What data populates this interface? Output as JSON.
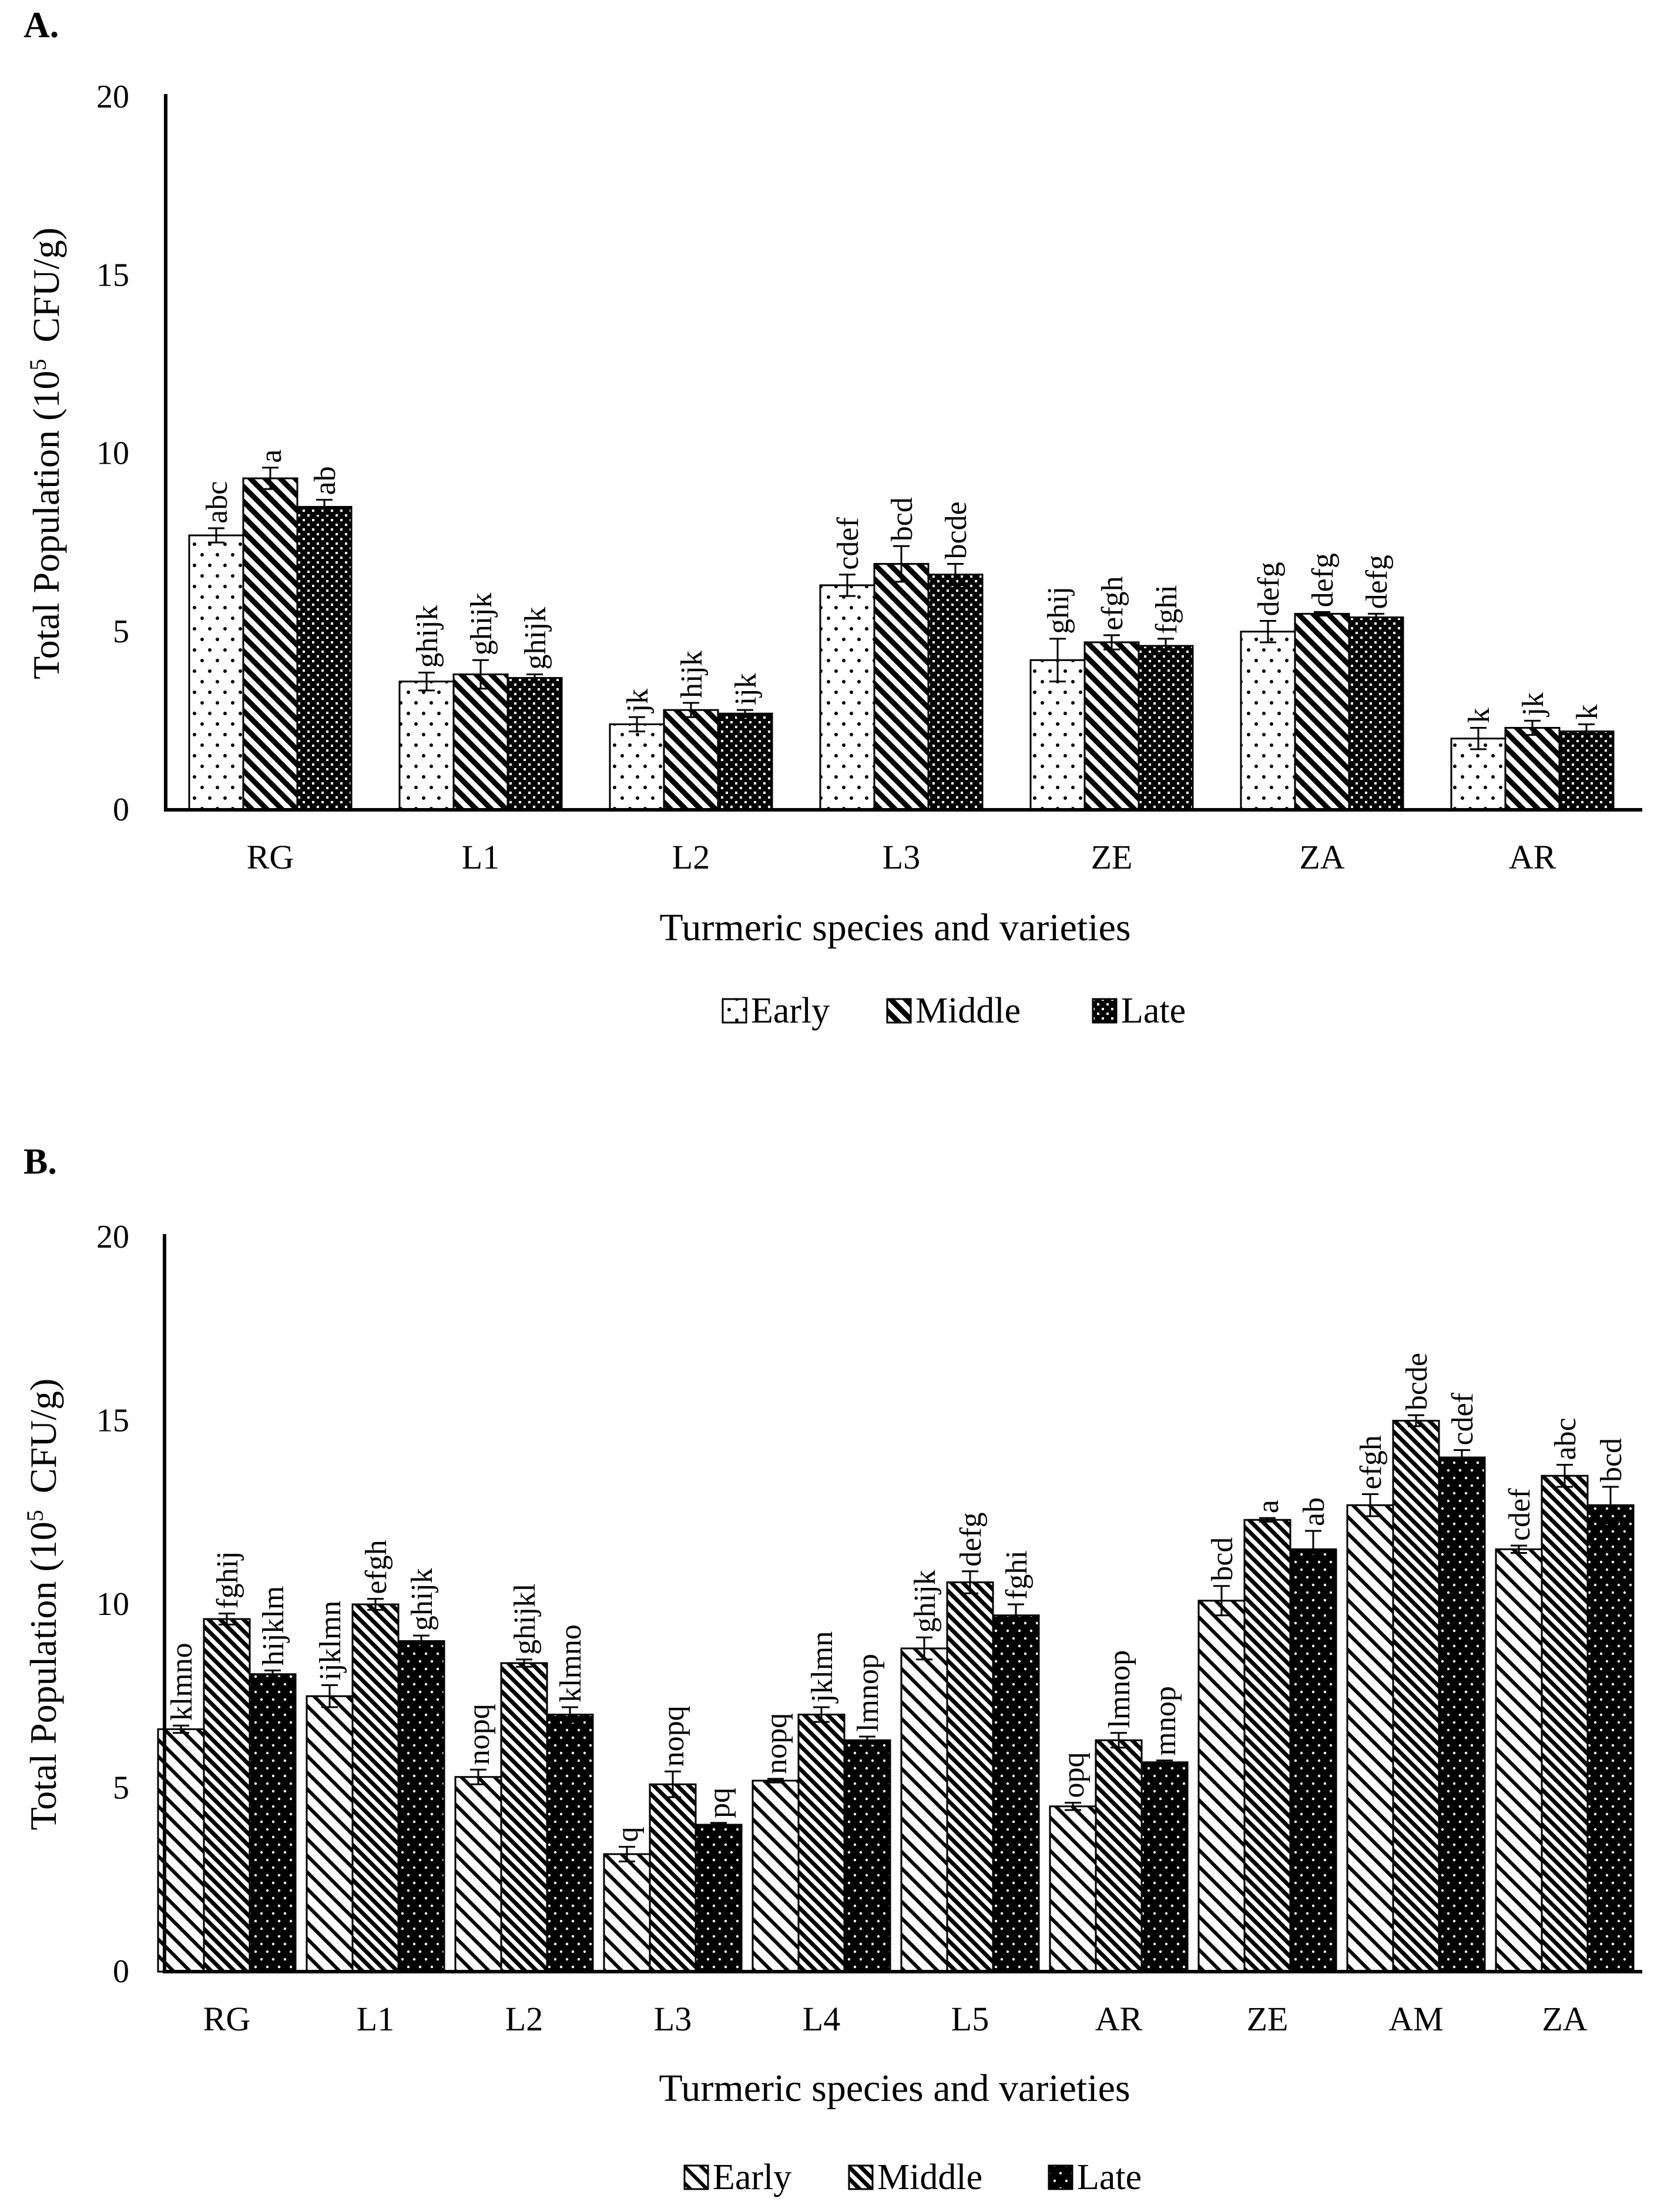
{
  "panels": [
    {
      "label": "A."
    },
    {
      "label": "B."
    }
  ],
  "colors": {
    "axis": "#000000",
    "bar_fill": "#ffffff",
    "late_fill": "#000000",
    "text": "#000000"
  },
  "chart_data": [
    {
      "type": "bar",
      "panel": "A.",
      "xlabel": "Turmeric species and varieties",
      "ylabel_prefix": "Total Population (10",
      "ylabel_sup": "5",
      "ylabel_suffix": "CFU/g)",
      "ylim": [
        0,
        20
      ],
      "yticks": [
        0,
        5,
        10,
        15,
        20
      ],
      "categories": [
        "RG",
        "L1",
        "L2",
        "L3",
        "ZE",
        "ZA",
        "AR"
      ],
      "legend_position": "bottom-center",
      "grid": false,
      "series": [
        {
          "name": "Early",
          "pattern": "dots",
          "values": [
            7.7,
            3.6,
            2.4,
            6.3,
            4.2,
            5.0,
            2.0
          ],
          "errors": [
            0.2,
            0.25,
            0.2,
            0.3,
            0.6,
            0.3,
            0.3
          ],
          "letters": [
            "abc",
            "ghijk",
            "jk",
            "cdef",
            "ghij",
            "defg",
            "k"
          ]
        },
        {
          "name": "Middle",
          "pattern": "diagonal",
          "values": [
            9.3,
            3.8,
            2.8,
            6.9,
            4.7,
            5.5,
            2.3
          ],
          "errors": [
            0.3,
            0.4,
            0.2,
            0.5,
            0.2,
            0.05,
            0.2
          ],
          "letters": [
            "a",
            "ghijk",
            "hijk",
            "bcd",
            "efgh",
            "defg",
            "jk"
          ]
        },
        {
          "name": "Late",
          "pattern": "checker",
          "values": [
            8.5,
            3.7,
            2.7,
            6.6,
            4.6,
            5.4,
            2.2
          ],
          "errors": [
            0.2,
            0.1,
            0.1,
            0.3,
            0.2,
            0.1,
            0.2
          ],
          "letters": [
            "ab",
            "ghijk",
            "ijk",
            "bcde",
            "fghi",
            "defg",
            "k"
          ]
        }
      ]
    },
    {
      "type": "bar",
      "panel": "B.",
      "xlabel": "Turmeric species and varieties",
      "ylabel_prefix": "Total Population (10",
      "ylabel_sup": "5",
      "ylabel_suffix": "CFU/g)",
      "ylim": [
        0,
        20
      ],
      "yticks": [
        0,
        5,
        10,
        15,
        20
      ],
      "categories": [
        "RG",
        "L1",
        "L2",
        "L3",
        "L4",
        "L5",
        "AR",
        "ZE",
        "AM",
        "ZA"
      ],
      "legend_position": "bottom-center",
      "grid": false,
      "series": [
        {
          "name": "Early",
          "pattern": "diagonal-wide",
          "values": [
            6.6,
            7.5,
            5.3,
            3.2,
            5.2,
            8.8,
            4.5,
            10.1,
            12.7,
            11.5
          ],
          "errors": [
            0.1,
            0.3,
            0.2,
            0.2,
            0.05,
            0.3,
            0.1,
            0.4,
            0.3,
            0.1
          ],
          "letters": [
            "klmno",
            "ijklmn",
            "nopq",
            "q",
            "nopq",
            "ghijk",
            "opq",
            "bcd",
            "efgh",
            "cdef"
          ]
        },
        {
          "name": "Middle",
          "pattern": "diagonal-dense",
          "values": [
            9.6,
            10.0,
            8.4,
            5.1,
            7.0,
            10.6,
            6.3,
            12.3,
            15.0,
            13.5
          ],
          "errors": [
            0.15,
            0.15,
            0.1,
            0.35,
            0.2,
            0.3,
            0.2,
            0.05,
            0.15,
            0.3
          ],
          "letters": [
            "fghij",
            "efgh",
            "ghijkl",
            "nopq",
            "jklmn",
            "defg",
            "lmnop",
            "a",
            "bcde",
            "abc"
          ]
        },
        {
          "name": "Late",
          "pattern": "black-dots",
          "values": [
            8.1,
            9.0,
            7.0,
            4.0,
            6.3,
            9.7,
            5.7,
            11.5,
            14.0,
            12.7
          ],
          "errors": [
            0.1,
            0.15,
            0.2,
            0.05,
            0.1,
            0.3,
            0.05,
            0.5,
            0.2,
            0.5
          ],
          "letters": [
            "hijklm",
            "ghijk",
            "klmno",
            "pq",
            "lmnop",
            "fghi",
            "mnop",
            "ab",
            "cdef",
            "bcd"
          ]
        }
      ]
    }
  ]
}
